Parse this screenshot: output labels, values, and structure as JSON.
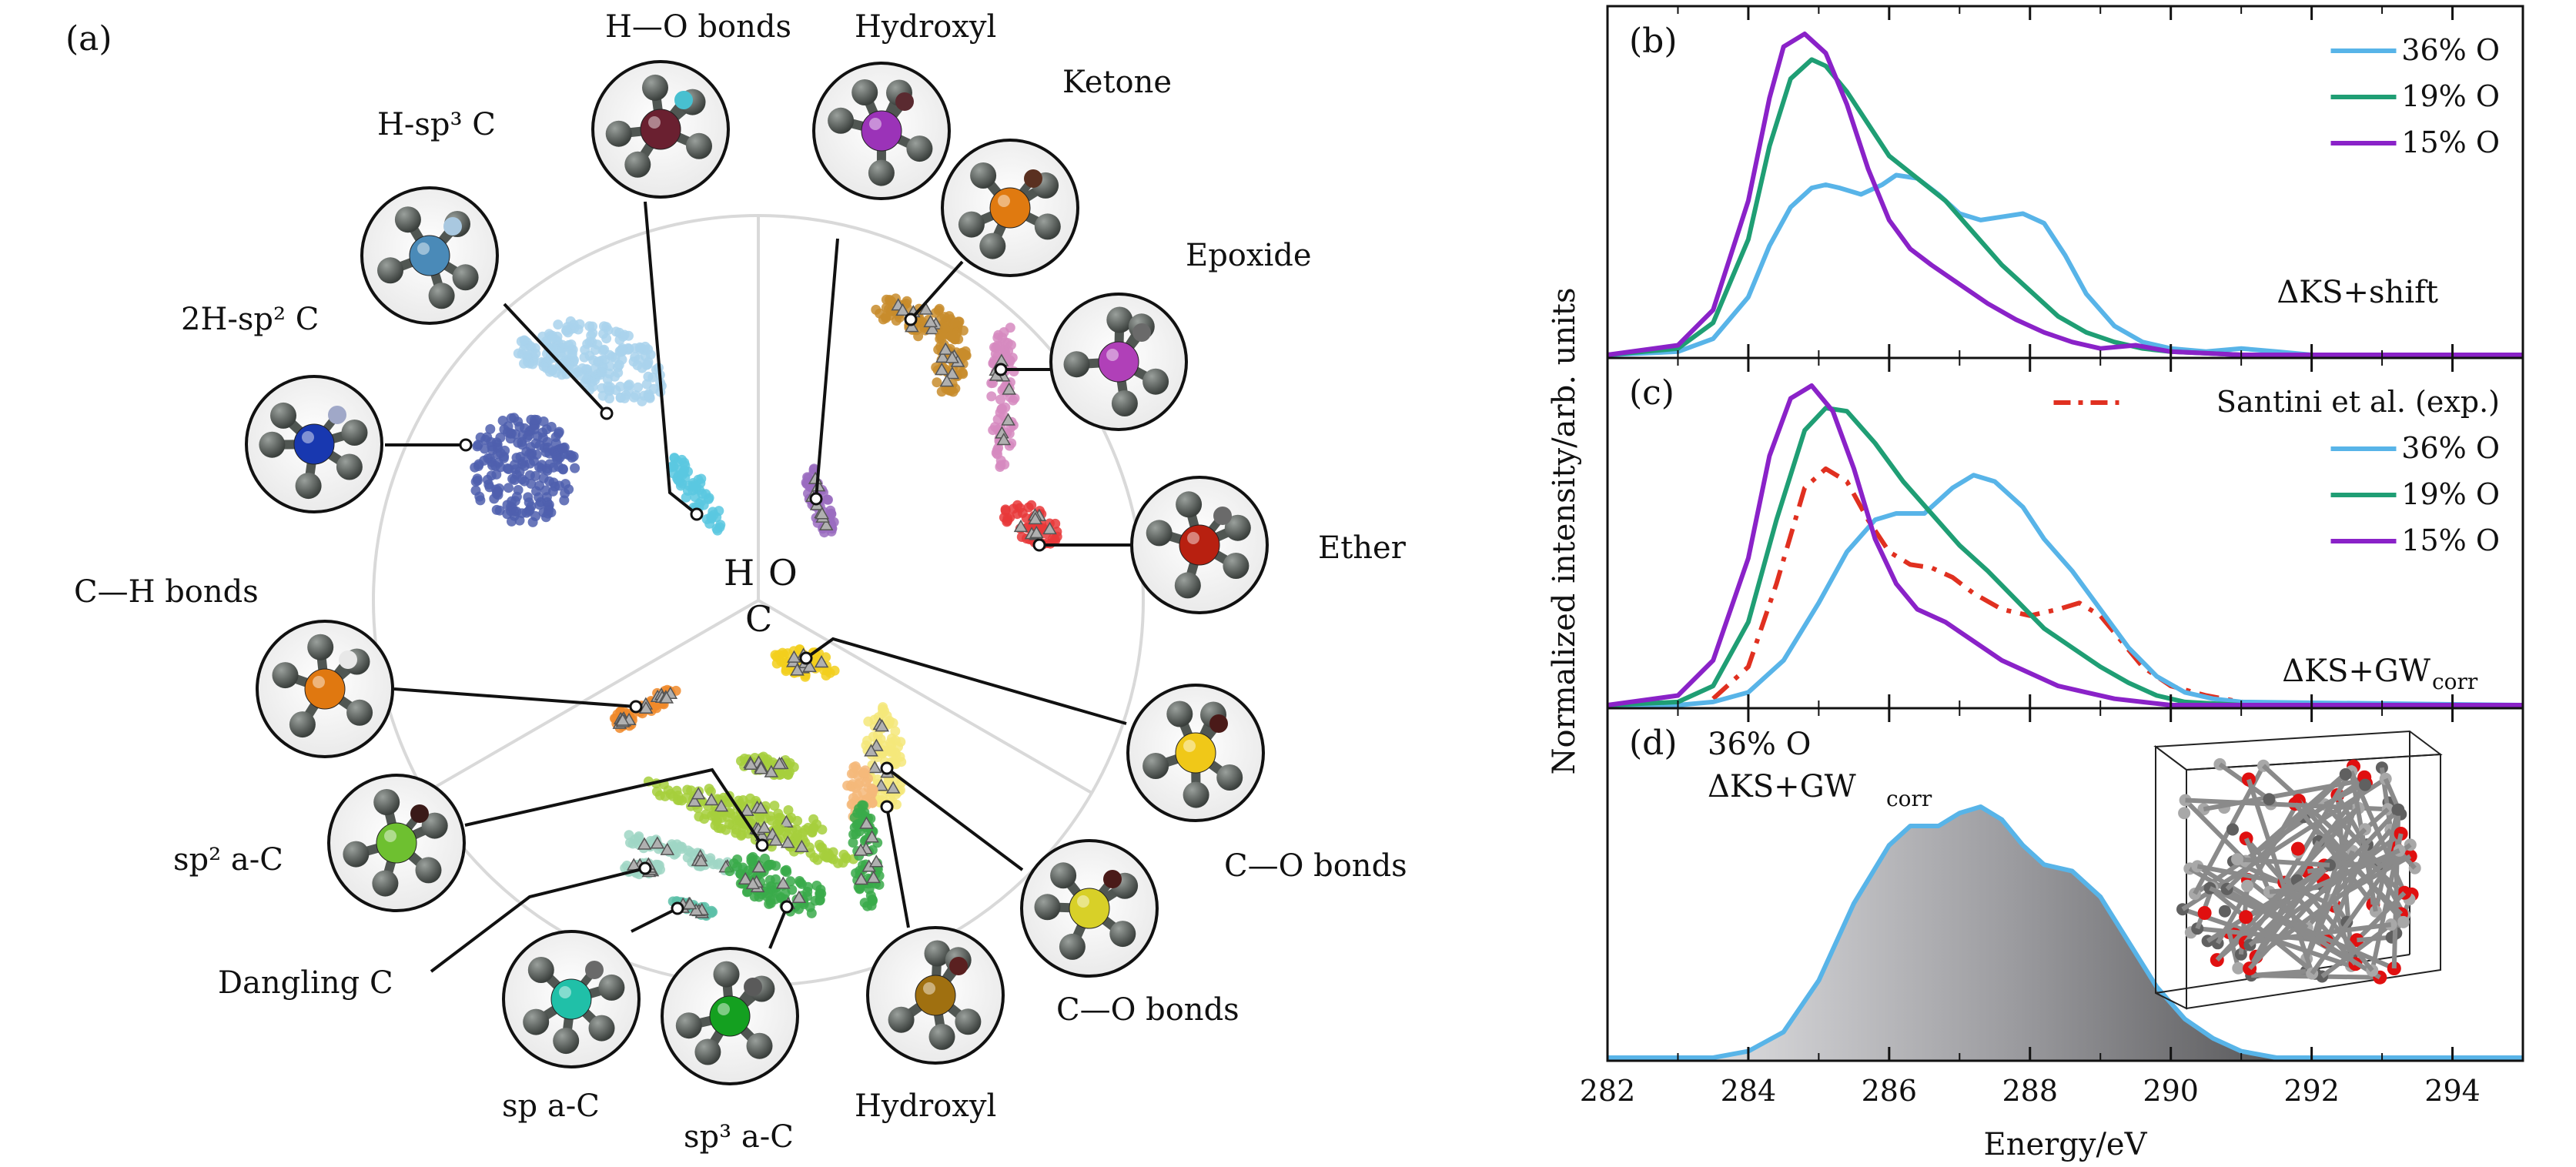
{
  "panel_labels": {
    "a": "(a)",
    "b": "(b)",
    "c": "(c)",
    "d": "(d)"
  },
  "map_axis_letters": {
    "h": "H",
    "o": "O",
    "c": "C"
  },
  "clusters": [
    {
      "id": "h-o-bonds",
      "label": "H—O bonds",
      "color": "#5bc8e0"
    },
    {
      "id": "hydroxyl-top",
      "label": "Hydroxyl",
      "color": "#9a6cc0"
    },
    {
      "id": "ketone",
      "label": "Ketone",
      "color": "#c88c2c"
    },
    {
      "id": "epoxide",
      "label": "Epoxide",
      "color": "#d68ac0"
    },
    {
      "id": "ether",
      "label": "Ether",
      "color": "#e8383a"
    },
    {
      "id": "h-sp3-c",
      "label": "H-sp³ C",
      "color": "#a9d2ec"
    },
    {
      "id": "2h-sp2-c",
      "label": "2H-sp² C",
      "color": "#4f5fae"
    },
    {
      "id": "c-h-bonds",
      "label": "C—H bonds",
      "color": "#f08a2a"
    },
    {
      "id": "c-o-bonds-1",
      "label": "C—O bonds",
      "color": "#f2cf1c"
    },
    {
      "id": "c-o-bonds-2",
      "label": "C—O bonds",
      "color": "#f5e77a"
    },
    {
      "id": "hydroxyl-bottom",
      "label": "Hydroxyl",
      "color": "#f5b87a"
    },
    {
      "id": "sp2-a-c",
      "label": "sp² a-C",
      "color": "#a6cf3c"
    },
    {
      "id": "dangling-c",
      "label": "Dangling C",
      "color": "#9fd6c4"
    },
    {
      "id": "sp-a-c",
      "label": "sp a-C",
      "color": "#5cc0a8"
    },
    {
      "id": "sp3-a-c",
      "label": "sp³ a-C",
      "color": "#3aaa4a"
    }
  ],
  "chart_data": [
    {
      "id": "b",
      "type": "line",
      "xlim": [
        282,
        295
      ],
      "method_label": "ΔKS+shift",
      "legend": [
        "36% O",
        "19% O",
        "15% O"
      ],
      "series": [
        {
          "name": "36% O",
          "color": "#58b4e8",
          "style": "solid",
          "x": [
            282.0,
            283.0,
            283.5,
            284.0,
            284.3,
            284.6,
            284.9,
            285.1,
            285.3,
            285.6,
            285.9,
            286.1,
            286.4,
            286.7,
            287.0,
            287.3,
            287.6,
            287.9,
            288.2,
            288.5,
            288.8,
            289.2,
            289.6,
            290.0,
            290.5,
            291.0,
            291.5,
            292.0,
            295.0
          ],
          "y": [
            0.0,
            0.01,
            0.05,
            0.18,
            0.34,
            0.46,
            0.52,
            0.53,
            0.52,
            0.5,
            0.53,
            0.56,
            0.55,
            0.5,
            0.44,
            0.42,
            0.43,
            0.44,
            0.41,
            0.31,
            0.19,
            0.09,
            0.04,
            0.02,
            0.01,
            0.02,
            0.01,
            0.0,
            0.0
          ]
        },
        {
          "name": "19% O",
          "color": "#1f9e74",
          "style": "solid",
          "x": [
            282.0,
            283.0,
            283.5,
            284.0,
            284.3,
            284.6,
            284.9,
            285.1,
            285.4,
            285.7,
            286.0,
            286.4,
            286.8,
            287.2,
            287.6,
            288.0,
            288.4,
            288.8,
            289.2,
            289.6,
            290.0,
            291.0,
            295.0
          ],
          "y": [
            0.0,
            0.02,
            0.1,
            0.36,
            0.65,
            0.86,
            0.92,
            0.9,
            0.82,
            0.72,
            0.62,
            0.55,
            0.48,
            0.38,
            0.28,
            0.2,
            0.12,
            0.07,
            0.04,
            0.02,
            0.01,
            0.0,
            0.0
          ]
        },
        {
          "name": "15% O",
          "color": "#8a22c8",
          "style": "solid",
          "x": [
            282.0,
            283.0,
            283.5,
            284.0,
            284.3,
            284.5,
            284.8,
            285.1,
            285.4,
            285.7,
            286.0,
            286.3,
            286.6,
            287.0,
            287.4,
            287.8,
            288.2,
            288.6,
            289.0,
            289.5,
            290.0,
            291.0,
            295.0
          ],
          "y": [
            0.0,
            0.03,
            0.14,
            0.48,
            0.8,
            0.96,
            1.0,
            0.94,
            0.78,
            0.58,
            0.42,
            0.33,
            0.28,
            0.22,
            0.16,
            0.11,
            0.07,
            0.04,
            0.02,
            0.03,
            0.01,
            0.0,
            0.0
          ]
        }
      ]
    },
    {
      "id": "c",
      "type": "line",
      "xlim": [
        282,
        295
      ],
      "method_label": "ΔKS+GW",
      "method_subscript": "corr",
      "legend": [
        "Santini et al. (exp.)",
        "36% O",
        "19% O",
        "15% O"
      ],
      "series": [
        {
          "name": "Santini et al. (exp.)",
          "color": "#e03020",
          "style": "dashdot",
          "x": [
            283.5,
            284.0,
            284.4,
            284.8,
            285.1,
            285.4,
            285.7,
            286.0,
            286.3,
            286.6,
            286.9,
            287.2,
            287.6,
            288.0,
            288.4,
            288.7,
            289.0,
            289.3,
            289.6,
            290.0,
            290.5,
            291.0,
            291.5,
            292.0
          ],
          "y": [
            0.02,
            0.12,
            0.38,
            0.68,
            0.74,
            0.7,
            0.58,
            0.48,
            0.44,
            0.43,
            0.4,
            0.35,
            0.3,
            0.28,
            0.3,
            0.32,
            0.28,
            0.2,
            0.12,
            0.06,
            0.03,
            0.01,
            0.005,
            0.0
          ]
        },
        {
          "name": "36% O",
          "color": "#58b4e8",
          "style": "solid",
          "x": [
            282.0,
            283.0,
            283.5,
            284.0,
            284.5,
            285.0,
            285.4,
            285.8,
            286.1,
            286.5,
            286.9,
            287.2,
            287.5,
            287.9,
            288.2,
            288.6,
            289.0,
            289.4,
            289.8,
            290.2,
            290.6,
            291.0,
            295.0
          ],
          "y": [
            0.0,
            0.0,
            0.01,
            0.04,
            0.14,
            0.32,
            0.48,
            0.58,
            0.6,
            0.6,
            0.68,
            0.72,
            0.7,
            0.62,
            0.52,
            0.42,
            0.3,
            0.18,
            0.09,
            0.04,
            0.02,
            0.01,
            0.0
          ]
        },
        {
          "name": "19% O",
          "color": "#1f9e74",
          "style": "solid",
          "x": [
            282.0,
            283.0,
            283.5,
            284.0,
            284.4,
            284.8,
            285.1,
            285.4,
            285.8,
            286.2,
            286.6,
            287.0,
            287.4,
            287.8,
            288.2,
            288.6,
            289.0,
            289.4,
            289.8,
            290.2,
            291.0,
            295.0
          ],
          "y": [
            0.0,
            0.01,
            0.06,
            0.26,
            0.58,
            0.86,
            0.93,
            0.92,
            0.82,
            0.7,
            0.6,
            0.5,
            0.42,
            0.33,
            0.24,
            0.18,
            0.12,
            0.07,
            0.03,
            0.01,
            0.0,
            0.0
          ]
        },
        {
          "name": "15% O",
          "color": "#8a22c8",
          "style": "solid",
          "x": [
            282.0,
            283.0,
            283.5,
            284.0,
            284.3,
            284.6,
            284.9,
            285.2,
            285.5,
            285.8,
            286.1,
            286.4,
            286.8,
            287.2,
            287.6,
            288.0,
            288.4,
            288.8,
            289.2,
            289.6,
            290.0,
            291.0,
            295.0
          ],
          "y": [
            0.0,
            0.03,
            0.14,
            0.46,
            0.78,
            0.96,
            1.0,
            0.92,
            0.74,
            0.52,
            0.38,
            0.3,
            0.26,
            0.2,
            0.14,
            0.1,
            0.06,
            0.04,
            0.02,
            0.01,
            0.0,
            0.0,
            0.0
          ]
        }
      ]
    },
    {
      "id": "d",
      "type": "area",
      "xlim": [
        282,
        295
      ],
      "annotation": "36% O",
      "method_label": "ΔKS+GW",
      "method_subscript": "corr",
      "series": [
        {
          "name": "36% O",
          "color": "#58b4e8",
          "x": [
            282.0,
            283.5,
            284.0,
            284.5,
            285.0,
            285.5,
            286.0,
            286.3,
            286.7,
            287.0,
            287.3,
            287.6,
            287.9,
            288.2,
            288.6,
            289.0,
            289.4,
            289.8,
            290.2,
            290.6,
            291.0,
            291.5,
            295.0
          ],
          "y": [
            0.0,
            0.0,
            0.02,
            0.08,
            0.24,
            0.48,
            0.66,
            0.72,
            0.72,
            0.76,
            0.78,
            0.74,
            0.66,
            0.6,
            0.58,
            0.5,
            0.36,
            0.22,
            0.12,
            0.06,
            0.02,
            0.0,
            0.0
          ]
        }
      ]
    }
  ],
  "shared_axis": {
    "xlabel": "Energy/eV",
    "ylabel": "Normalized intensity/arb. units",
    "xticks": [
      282,
      284,
      286,
      288,
      290,
      292,
      294
    ]
  }
}
